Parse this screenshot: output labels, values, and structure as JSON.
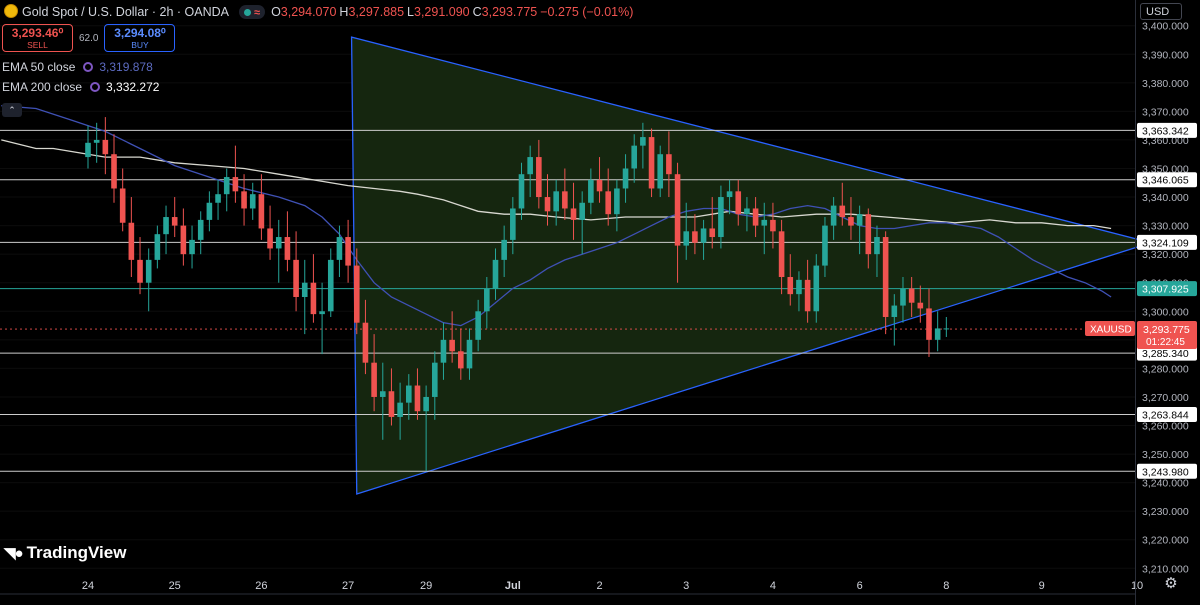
{
  "header": {
    "title": "Gold Spot / U.S. Dollar · 2h · OANDA",
    "ohlc": [
      {
        "k": "O",
        "v": "3,294.070"
      },
      {
        "k": "H",
        "v": "3,297.885"
      },
      {
        "k": "L",
        "v": "3,291.090"
      },
      {
        "k": "C",
        "v": "3,293.775"
      }
    ],
    "change": "−0.275 (−0.01%)"
  },
  "trade": {
    "sell_price": "3,293.46⁰",
    "sell_label": "SELL",
    "spread": "62.0",
    "buy_price": "3,294.08⁰",
    "buy_label": "BUY"
  },
  "indicators": [
    {
      "label": "EMA 50 close",
      "value": "3,319.878",
      "color": "#3f51b5"
    },
    {
      "label": "EMA 200 close",
      "value": "3,332.272",
      "color": "#ffffff"
    }
  ],
  "axis": {
    "currency": "USD"
  },
  "branding": {
    "logo": "TradingView"
  },
  "colors": {
    "up": "#26a69a",
    "down": "#ef5350",
    "ema50": "#3f51b5",
    "ema200": "#d8d8d0",
    "triangle_fill": "#15260f",
    "triangle_line": "#2962ff",
    "level_line": "#cccccc"
  },
  "chart_data": {
    "type": "candlestick",
    "symbol": "XAUUSD",
    "interval": "2h",
    "ylim": [
      3201,
      3409
    ],
    "y_ticks": [
      3210,
      3220,
      3230,
      3240,
      3250,
      3260,
      3270,
      3280,
      3290,
      3300,
      3310,
      3320,
      3330,
      3340,
      3350,
      3360,
      3370,
      3380,
      3390,
      3400
    ],
    "y_tick_labels": [
      "3,210.000",
      "3,220.000",
      "3,230.000",
      "3,240.000",
      "3,250.000",
      "3,260.000",
      "3,270.000",
      "3,280.000",
      "3,290.000",
      "3,300.000",
      "3,310.000",
      "3,320.000",
      "3,330.000",
      "3,340.000",
      "3,350.000",
      "3,360.000",
      "3,370.000",
      "3,380.000",
      "3,390.000",
      "3,400.000"
    ],
    "x_labels": [
      "24",
      "25",
      "26",
      "27",
      "29",
      "Jul",
      "2",
      "3",
      "4",
      "6",
      "8",
      "9",
      "10"
    ],
    "x_label_positions": [
      0,
      10,
      20,
      30,
      39,
      49,
      59,
      69,
      79,
      89,
      99,
      110,
      121
    ],
    "levels": [
      {
        "value": 3363.342,
        "label": "3,363.342"
      },
      {
        "value": 3346.065,
        "label": "3,346.065"
      },
      {
        "value": 3324.109,
        "label": "3,324.109"
      },
      {
        "value": 3307.925,
        "label": "3,307.925",
        "color": "#26a69a"
      },
      {
        "value": 3285.34,
        "label": "3,285.340"
      },
      {
        "value": 3263.844,
        "label": "3,263.844"
      },
      {
        "value": 3243.98,
        "label": "3,243.980"
      }
    ],
    "current_price": {
      "symbol": "XAUUSD",
      "value": 3293.775,
      "label": "3,293.775",
      "countdown": "01:22:45"
    },
    "triangle": [
      [
        30.4,
        3396.0
      ],
      [
        31.0,
        3236.0
      ],
      [
        122.6,
        3324.0
      ]
    ],
    "ema50": [
      [
        -10,
        3372
      ],
      [
        -6,
        3371
      ],
      [
        -2,
        3367
      ],
      [
        2,
        3363
      ],
      [
        6,
        3357
      ],
      [
        10,
        3351
      ],
      [
        14,
        3347
      ],
      [
        18,
        3343
      ],
      [
        22,
        3340
      ],
      [
        25,
        3337
      ],
      [
        27,
        3333
      ],
      [
        29,
        3327
      ],
      [
        31,
        3318
      ],
      [
        33,
        3310
      ],
      [
        35,
        3305
      ],
      [
        37,
        3302
      ],
      [
        39,
        3299
      ],
      [
        41,
        3296
      ],
      [
        43,
        3295
      ],
      [
        45,
        3298
      ],
      [
        47,
        3303
      ],
      [
        49,
        3308
      ],
      [
        51,
        3311
      ],
      [
        53,
        3315
      ],
      [
        55,
        3318
      ],
      [
        57,
        3320
      ],
      [
        59,
        3322
      ],
      [
        61,
        3324
      ],
      [
        63,
        3327
      ],
      [
        65,
        3330
      ],
      [
        67,
        3333
      ],
      [
        69,
        3335
      ],
      [
        71,
        3336
      ],
      [
        73,
        3336
      ],
      [
        75,
        3334
      ],
      [
        77,
        3333
      ],
      [
        79,
        3334
      ],
      [
        81,
        3336
      ],
      [
        83,
        3337
      ],
      [
        85,
        3336
      ],
      [
        87,
        3333
      ],
      [
        89,
        3330
      ],
      [
        91,
        3329
      ],
      [
        93,
        3329
      ],
      [
        95,
        3330
      ],
      [
        97,
        3331
      ],
      [
        99,
        3331
      ],
      [
        101,
        3330
      ],
      [
        103,
        3329
      ],
      [
        105,
        3326
      ],
      [
        107,
        3322
      ],
      [
        109,
        3318
      ],
      [
        111,
        3315
      ],
      [
        113,
        3312
      ],
      [
        115,
        3310
      ],
      [
        117,
        3307
      ],
      [
        118,
        3305
      ]
    ],
    "ema200": [
      [
        -10,
        3360
      ],
      [
        -6,
        3357
      ],
      [
        -4,
        3357
      ],
      [
        -2,
        3356
      ],
      [
        2,
        3354
      ],
      [
        6,
        3354
      ],
      [
        10,
        3352
      ],
      [
        14,
        3351
      ],
      [
        18,
        3350
      ],
      [
        22,
        3348
      ],
      [
        26,
        3346
      ],
      [
        30,
        3344
      ],
      [
        33,
        3343
      ],
      [
        36,
        3342
      ],
      [
        38,
        3341
      ],
      [
        41,
        3339
      ],
      [
        43,
        3337
      ],
      [
        45,
        3335
      ],
      [
        48,
        3334
      ],
      [
        51,
        3334
      ],
      [
        54,
        3333
      ],
      [
        58,
        3332
      ],
      [
        62,
        3333
      ],
      [
        66,
        3333
      ],
      [
        70,
        3333
      ],
      [
        74,
        3335
      ],
      [
        77,
        3334
      ],
      [
        80,
        3333
      ],
      [
        84,
        3334
      ],
      [
        88,
        3334
      ],
      [
        92,
        3333
      ],
      [
        96,
        3332
      ],
      [
        100,
        3331
      ],
      [
        104,
        3332
      ],
      [
        107,
        3331
      ],
      [
        110,
        3331
      ],
      [
        113,
        3330
      ],
      [
        116,
        3330
      ],
      [
        118,
        3329
      ]
    ],
    "candles": [
      [
        3354,
        3365,
        3350,
        3359
      ],
      [
        3359,
        3366,
        3352,
        3360
      ],
      [
        3360,
        3368,
        3348,
        3355
      ],
      [
        3355,
        3362,
        3338,
        3343
      ],
      [
        3343,
        3350,
        3328,
        3331
      ],
      [
        3331,
        3340,
        3312,
        3318
      ],
      [
        3318,
        3326,
        3306,
        3310
      ],
      [
        3310,
        3322,
        3300,
        3318
      ],
      [
        3318,
        3330,
        3315,
        3327
      ],
      [
        3327,
        3337,
        3320,
        3333
      ],
      [
        3333,
        3340,
        3326,
        3330
      ],
      [
        3330,
        3336,
        3316,
        3320
      ],
      [
        3320,
        3330,
        3315,
        3325
      ],
      [
        3325,
        3335,
        3320,
        3332
      ],
      [
        3332,
        3342,
        3328,
        3338
      ],
      [
        3338,
        3346,
        3332,
        3341
      ],
      [
        3341,
        3350,
        3335,
        3347
      ],
      [
        3347,
        3358,
        3338,
        3342
      ],
      [
        3342,
        3348,
        3330,
        3336
      ],
      [
        3336,
        3345,
        3332,
        3341
      ],
      [
        3341,
        3348,
        3325,
        3329
      ],
      [
        3329,
        3337,
        3318,
        3322
      ],
      [
        3322,
        3332,
        3310,
        3326
      ],
      [
        3326,
        3335,
        3314,
        3318
      ],
      [
        3318,
        3328,
        3300,
        3305
      ],
      [
        3305,
        3318,
        3292,
        3310
      ],
      [
        3310,
        3320,
        3296,
        3299
      ],
      [
        3299,
        3310,
        3285,
        3300
      ],
      [
        3300,
        3322,
        3298,
        3318
      ],
      [
        3318,
        3330,
        3312,
        3326
      ],
      [
        3326,
        3332,
        3310,
        3316
      ],
      [
        3316,
        3322,
        3292,
        3296
      ],
      [
        3296,
        3304,
        3278,
        3282
      ],
      [
        3282,
        3292,
        3265,
        3270
      ],
      [
        3270,
        3282,
        3255,
        3272
      ],
      [
        3272,
        3280,
        3260,
        3263
      ],
      [
        3263,
        3275,
        3255,
        3268
      ],
      [
        3268,
        3278,
        3262,
        3274
      ],
      [
        3274,
        3280,
        3262,
        3265
      ],
      [
        3265,
        3274,
        3244,
        3270
      ],
      [
        3270,
        3286,
        3262,
        3282
      ],
      [
        3282,
        3296,
        3276,
        3290
      ],
      [
        3290,
        3300,
        3282,
        3286
      ],
      [
        3286,
        3294,
        3276,
        3280
      ],
      [
        3280,
        3294,
        3276,
        3290
      ],
      [
        3290,
        3304,
        3286,
        3300
      ],
      [
        3300,
        3312,
        3294,
        3308
      ],
      [
        3308,
        3322,
        3304,
        3318
      ],
      [
        3318,
        3330,
        3312,
        3325
      ],
      [
        3325,
        3340,
        3320,
        3336
      ],
      [
        3336,
        3352,
        3332,
        3348
      ],
      [
        3348,
        3358,
        3340,
        3354
      ],
      [
        3354,
        3360,
        3336,
        3340
      ],
      [
        3340,
        3348,
        3330,
        3335
      ],
      [
        3335,
        3346,
        3330,
        3342
      ],
      [
        3342,
        3350,
        3332,
        3336
      ],
      [
        3336,
        3345,
        3325,
        3332
      ],
      [
        3332,
        3342,
        3320,
        3338
      ],
      [
        3338,
        3350,
        3334,
        3346
      ],
      [
        3346,
        3354,
        3338,
        3342
      ],
      [
        3342,
        3350,
        3330,
        3334
      ],
      [
        3334,
        3346,
        3328,
        3343
      ],
      [
        3343,
        3355,
        3338,
        3350
      ],
      [
        3350,
        3362,
        3345,
        3358
      ],
      [
        3358,
        3366,
        3350,
        3361
      ],
      [
        3361,
        3364,
        3340,
        3343
      ],
      [
        3343,
        3358,
        3340,
        3355
      ],
      [
        3355,
        3363,
        3340,
        3348
      ],
      [
        3348,
        3352,
        3310,
        3323
      ],
      [
        3323,
        3338,
        3318,
        3328
      ],
      [
        3328,
        3334,
        3320,
        3324
      ],
      [
        3324,
        3332,
        3318,
        3329
      ],
      [
        3329,
        3340,
        3322,
        3326
      ],
      [
        3326,
        3344,
        3322,
        3340
      ],
      [
        3340,
        3346,
        3334,
        3342
      ],
      [
        3342,
        3346,
        3330,
        3334
      ],
      [
        3334,
        3340,
        3328,
        3336
      ],
      [
        3336,
        3340,
        3326,
        3330
      ],
      [
        3330,
        3338,
        3320,
        3332
      ],
      [
        3332,
        3338,
        3322,
        3328
      ],
      [
        3328,
        3332,
        3306,
        3312
      ],
      [
        3312,
        3320,
        3302,
        3306
      ],
      [
        3306,
        3314,
        3300,
        3311
      ],
      [
        3311,
        3318,
        3296,
        3300
      ],
      [
        3300,
        3320,
        3296,
        3316
      ],
      [
        3316,
        3333,
        3312,
        3330
      ],
      [
        3330,
        3340,
        3325,
        3337
      ],
      [
        3337,
        3345,
        3330,
        3333
      ],
      [
        3333,
        3340,
        3325,
        3330
      ],
      [
        3330,
        3337,
        3320,
        3334
      ],
      [
        3334,
        3336,
        3315,
        3320
      ],
      [
        3320,
        3330,
        3312,
        3326
      ],
      [
        3326,
        3328,
        3292,
        3298
      ],
      [
        3298,
        3306,
        3288,
        3302
      ],
      [
        3302,
        3312,
        3296,
        3308
      ],
      [
        3308,
        3312,
        3298,
        3303
      ],
      [
        3303,
        3309,
        3296,
        3301
      ],
      [
        3301,
        3308,
        3284,
        3290
      ],
      [
        3290,
        3300,
        3286,
        3294
      ],
      [
        3294,
        3298,
        3291,
        3294
      ]
    ]
  }
}
